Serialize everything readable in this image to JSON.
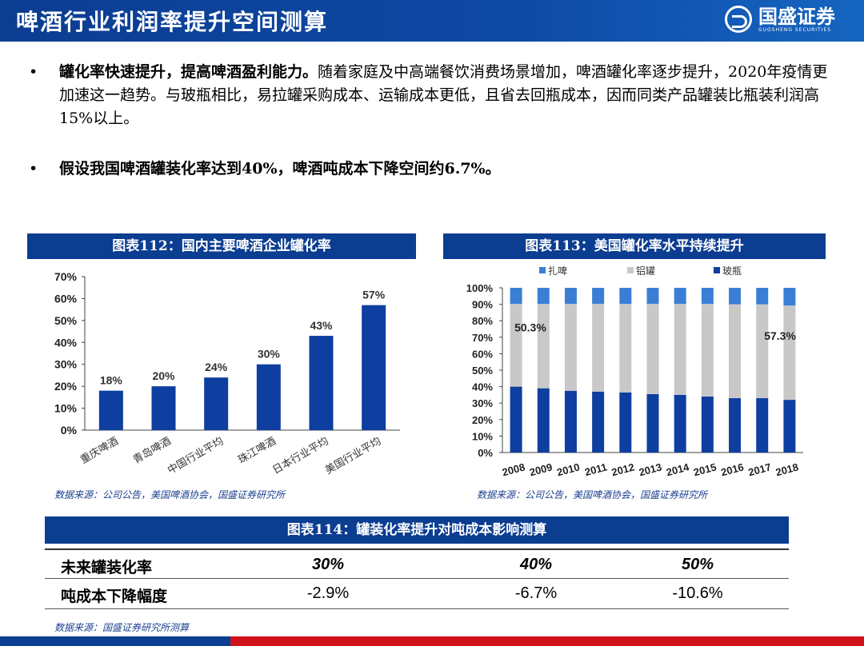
{
  "header": {
    "title": "啤酒行业利润率提升空间测算",
    "logo_text": "国盛证券",
    "logo_sub": "GUOSHENG SECURITIES"
  },
  "bullets": [
    {
      "bold": "罐化率快速提升，提高啤酒盈利能力。",
      "text": "随着家庭及中高端餐饮消费场景增加，啤酒罐化率逐步提升，2020年疫情更加速这一趋势。与玻瓶相比，易拉罐采购成本、运输成本更低，且省去回瓶成本，因而同类产品罐装比瓶装利润高15%以上。"
    },
    {
      "bold": "假设我国啤酒罐装化率达到40%，啤酒吨成本下降空间约6.7%。",
      "text": ""
    }
  ],
  "fig112": {
    "title": "图表112：国内主要啤酒企业罐化率",
    "source": "数据来源：公司公告，美国啤酒协会，国盛证券研究所"
  },
  "fig113": {
    "title": "图表113：美国罐化率水平持续提升",
    "source": "数据来源：公司公告，美国啤酒协会，国盛证券研究所"
  },
  "fig114": {
    "title": "图表114：罐装化率提升对吨成本影响测算",
    "row1_label": "未来罐装化率",
    "row2_label": "吨成本下降幅度",
    "rates": [
      "30%",
      "40%",
      "50%"
    ],
    "declines": [
      "-2.9%",
      "-6.7%",
      "-10.6%"
    ],
    "source": "数据来源：国盛证券研究所测算"
  },
  "colors": {
    "navy": "#0b3d91",
    "bar": "#0e3ea0",
    "gray": "#c8c8c8",
    "light_blue": "#3a7fd5",
    "red": "#d0121b"
  },
  "chart_data": [
    {
      "type": "bar",
      "categories": [
        "重庆啤酒",
        "青岛啤酒",
        "中国行业平均",
        "珠江啤酒",
        "日本行业平均",
        "美国行业平均"
      ],
      "values": [
        18,
        20,
        24,
        30,
        43,
        57
      ],
      "data_labels": [
        "18%",
        "20%",
        "24%",
        "30%",
        "43%",
        "57%"
      ],
      "yticks": [
        "0%",
        "10%",
        "20%",
        "30%",
        "40%",
        "50%",
        "60%",
        "70%"
      ],
      "ylim": [
        0,
        70
      ]
    },
    {
      "type": "bar",
      "stacked": true,
      "categories": [
        "2008",
        "2009",
        "2010",
        "2011",
        "2012",
        "2013",
        "2014",
        "2015",
        "2016",
        "2017",
        "2018"
      ],
      "series": [
        {
          "name": "玻瓶",
          "values": [
            40.0,
            39.0,
            37.5,
            37.0,
            36.5,
            35.5,
            35.0,
            34.0,
            33.0,
            33.0,
            32.0
          ]
        },
        {
          "name": "铝罐",
          "values": [
            50.3,
            51.3,
            52.8,
            53.3,
            53.8,
            54.8,
            55.3,
            56.3,
            57.0,
            57.0,
            57.3
          ]
        },
        {
          "name": "扎啤",
          "values": [
            9.7,
            9.7,
            9.7,
            9.7,
            9.7,
            9.7,
            9.7,
            9.7,
            10.0,
            10.0,
            10.7
          ]
        }
      ],
      "annotations": [
        "50.3%",
        "57.3%"
      ],
      "yticks": [
        "0%",
        "10%",
        "20%",
        "30%",
        "40%",
        "50%",
        "60%",
        "70%",
        "80%",
        "90%",
        "100%"
      ],
      "ylim": [
        0,
        100
      ],
      "legend": "top"
    }
  ]
}
